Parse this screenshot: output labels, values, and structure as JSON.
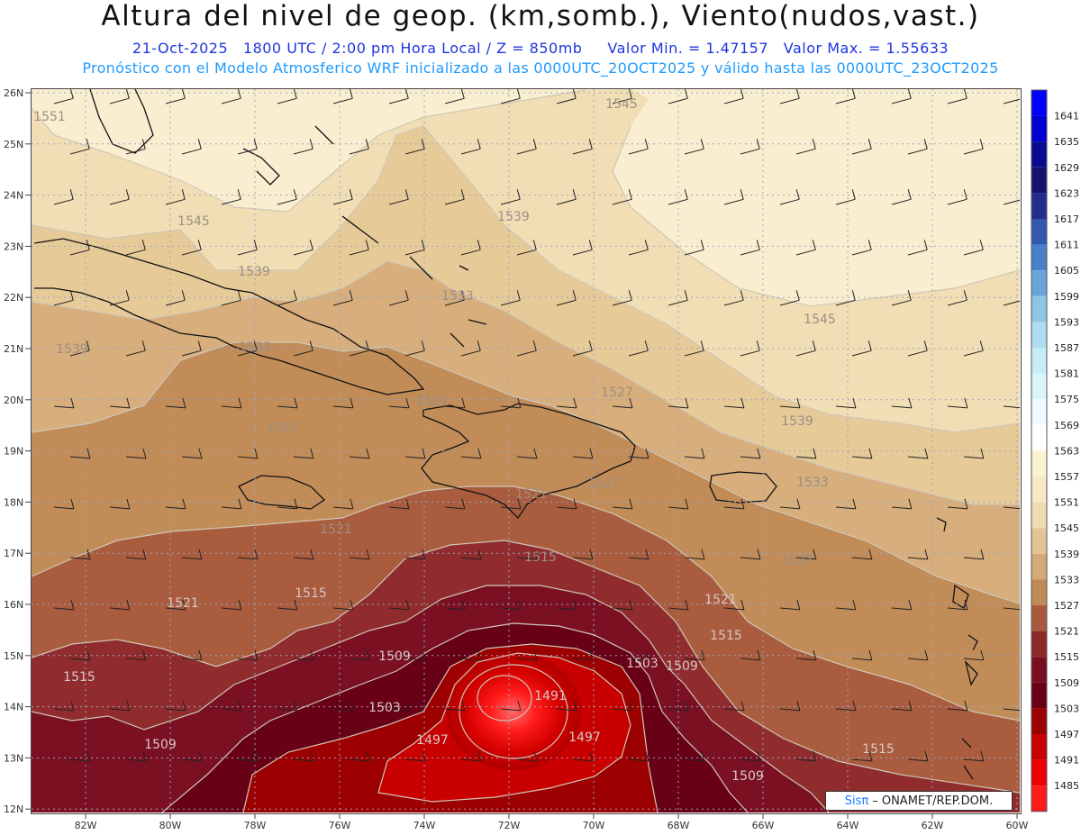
{
  "title": "Altura del nivel de geop. (km,somb.), Viento(nudos,vast.)",
  "subtitle": {
    "date": "21-Oct-2025",
    "time": "1800 UTC / 2:00 pm Hora Local / Z = 850mb",
    "min": "Valor Min. = 1.47157",
    "max": "Valor Max. = 1.55633"
  },
  "model_line": "Pronóstico con el Modelo Atmosferico WRF inicializado a las 0000UTC_20OCT2025 y válido hasta las 0000UTC_23OCT2025",
  "lat_ticks": [
    "26N",
    "25N",
    "24N",
    "23N",
    "22N",
    "21N",
    "20N",
    "19N",
    "18N",
    "17N",
    "16N",
    "15N",
    "14N",
    "13N",
    "12N"
  ],
  "lon_ticks": [
    "82W",
    "80W",
    "78W",
    "76W",
    "74W",
    "72W",
    "70W",
    "68W",
    "66W",
    "64W",
    "62W",
    "60W"
  ],
  "colorbar": [
    {
      "label": "1641",
      "color": "#0000ff"
    },
    {
      "label": "1635",
      "color": "#0000d0"
    },
    {
      "label": "1629",
      "color": "#0a0a90"
    },
    {
      "label": "1623",
      "color": "#141470"
    },
    {
      "label": "1617",
      "color": "#232d8c"
    },
    {
      "label": "1611",
      "color": "#3358b0"
    },
    {
      "label": "1605",
      "color": "#4a80c8"
    },
    {
      "label": "1599",
      "color": "#6aa4d8"
    },
    {
      "label": "1593",
      "color": "#8ec4e6"
    },
    {
      "label": "1587",
      "color": "#aedcf0"
    },
    {
      "label": "1581",
      "color": "#c6ecf6"
    },
    {
      "label": "1575",
      "color": "#daf4fa"
    },
    {
      "label": "1569",
      "color": "#eefbff"
    },
    {
      "label": "1563",
      "color": "#ffffff"
    },
    {
      "label": "1557",
      "color": "#fbf2d0"
    },
    {
      "label": "1551",
      "color": "#f6e9c4"
    },
    {
      "label": "1545",
      "color": "#efdcb2"
    },
    {
      "label": "1539",
      "color": "#e2c596"
    },
    {
      "label": "1533",
      "color": "#d4aa78"
    },
    {
      "label": "1527",
      "color": "#c08a56"
    },
    {
      "label": "1521",
      "color": "#a85a3e"
    },
    {
      "label": "1515",
      "color": "#8e2a2c"
    },
    {
      "label": "1509",
      "color": "#780e20"
    },
    {
      "label": "1503",
      "color": "#6a0016"
    },
    {
      "label": "1497",
      "color": "#9a0000"
    },
    {
      "label": "1491",
      "color": "#c80000"
    },
    {
      "label": "1485",
      "color": "#ee0000"
    },
    {
      "label": "",
      "color": "#ff1a1a"
    }
  ],
  "contour_labels": [
    "1551",
    "1545",
    "1545",
    "1545",
    "1539",
    "1539",
    "1539",
    "1539",
    "1533",
    "1533",
    "1533",
    "1527",
    "1527",
    "1527",
    "1527",
    "1527",
    "1521",
    "1521",
    "1521",
    "1521",
    "1515",
    "1515",
    "1515",
    "1515",
    "1515",
    "1509",
    "1509",
    "1509",
    "1509",
    "1503",
    "1503",
    "1497",
    "1497",
    "1491"
  ],
  "credit": {
    "brand": "Sisπ",
    "rest": "– ONAMET/REP.DOM."
  }
}
